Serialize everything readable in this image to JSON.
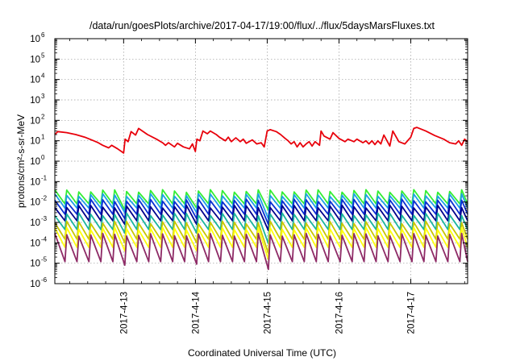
{
  "chart_data": {
    "type": "line",
    "title": "/data/run/goesPlots/archive/2017-04-17/19:00/flux/../flux/5daysMarsFluxes.txt",
    "xlabel": "Coordinated Universal Time (UTC)",
    "ylabel": "protons/cm²-s-sr-MeV",
    "yscale": "log",
    "ylim": [
      1e-06,
      1000000.0
    ],
    "y_ticks": [
      {
        "base": "10",
        "exp": "-6"
      },
      {
        "base": "10",
        "exp": "-5"
      },
      {
        "base": "10",
        "exp": "-4"
      },
      {
        "base": "10",
        "exp": "-3"
      },
      {
        "base": "10",
        "exp": "-2"
      },
      {
        "base": "10",
        "exp": "-1"
      },
      {
        "base": "10",
        "exp": "0"
      },
      {
        "base": "10",
        "exp": "1"
      },
      {
        "base": "10",
        "exp": "2"
      },
      {
        "base": "10",
        "exp": "3"
      },
      {
        "base": "10",
        "exp": "4"
      },
      {
        "base": "10",
        "exp": "5"
      },
      {
        "base": "10",
        "exp": "6"
      }
    ],
    "xlim": [
      "2017-04-12 01:00",
      "2017-04-17 19:00"
    ],
    "x_ticks": [
      "2017-4-13",
      "2017-4-14",
      "2017-4-15",
      "2017-4-16",
      "2017-4-17"
    ],
    "grid": true,
    "legend": "none",
    "series": [
      {
        "color": "#e8000b",
        "values": [
          [
            "2017-04-12 01:00",
            20
          ],
          [
            "2017-04-12 02:00",
            28
          ],
          [
            "2017-04-12 05:00",
            25
          ],
          [
            "2017-04-12 08:00",
            20
          ],
          [
            "2017-04-12 11:00",
            15
          ],
          [
            "2017-04-12 14:00",
            10
          ],
          [
            "2017-04-12 15:30",
            8
          ],
          [
            "2017-04-12 17:00",
            6
          ],
          [
            "2017-04-12 19:00",
            4.5
          ],
          [
            "2017-04-12 20:00",
            6
          ],
          [
            "2017-04-12 22:00",
            4
          ],
          [
            "2017-04-13 00:00",
            2.5
          ],
          [
            "2017-04-13 00:30",
            12
          ],
          [
            "2017-04-13 01:30",
            9
          ],
          [
            "2017-04-13 02:30",
            28
          ],
          [
            "2017-04-13 04:00",
            19
          ],
          [
            "2017-04-13 05:00",
            40
          ],
          [
            "2017-04-13 08:00",
            20
          ],
          [
            "2017-04-13 11:00",
            12
          ],
          [
            "2017-04-13 13:00",
            8
          ],
          [
            "2017-04-13 14:00",
            6
          ],
          [
            "2017-04-13 15:00",
            8
          ],
          [
            "2017-04-13 17:00",
            5
          ],
          [
            "2017-04-13 18:00",
            7.5
          ],
          [
            "2017-04-13 20:00",
            5
          ],
          [
            "2017-04-13 22:00",
            4
          ],
          [
            "2017-04-13 23:00",
            7
          ],
          [
            "2017-04-13 23:59",
            3
          ],
          [
            "2017-04-14 00:30",
            12
          ],
          [
            "2017-04-14 01:30",
            10
          ],
          [
            "2017-04-14 02:30",
            30
          ],
          [
            "2017-04-14 04:00",
            22
          ],
          [
            "2017-04-14 05:00",
            30
          ],
          [
            "2017-04-14 07:00",
            20
          ],
          [
            "2017-04-14 08:00",
            15
          ],
          [
            "2017-04-14 10:00",
            10
          ],
          [
            "2017-04-14 11:00",
            15
          ],
          [
            "2017-04-14 12:00",
            9
          ],
          [
            "2017-04-14 13:30",
            14
          ],
          [
            "2017-04-14 15:00",
            9
          ],
          [
            "2017-04-14 16:00",
            12
          ],
          [
            "2017-04-14 17:00",
            7.5
          ],
          [
            "2017-04-14 19:00",
            11
          ],
          [
            "2017-04-14 20:30",
            7
          ],
          [
            "2017-04-14 22:00",
            8
          ],
          [
            "2017-04-14 23:00",
            5
          ],
          [
            "2017-04-15 00:00",
            30
          ],
          [
            "2017-04-15 01:00",
            35
          ],
          [
            "2017-04-15 03:00",
            28
          ],
          [
            "2017-04-15 04:30",
            20
          ],
          [
            "2017-04-15 06:00",
            13
          ],
          [
            "2017-04-15 07:00",
            10
          ],
          [
            "2017-04-15 08:00",
            7
          ],
          [
            "2017-04-15 09:00",
            9
          ],
          [
            "2017-04-15 10:00",
            5
          ],
          [
            "2017-04-15 11:00",
            8
          ],
          [
            "2017-04-15 12:00",
            5
          ],
          [
            "2017-04-15 13:00",
            7
          ],
          [
            "2017-04-15 14:00",
            9
          ],
          [
            "2017-04-15 15:00",
            5.5
          ],
          [
            "2017-04-15 16:00",
            9
          ],
          [
            "2017-04-15 17:30",
            6
          ],
          [
            "2017-04-15 18:00",
            30
          ],
          [
            "2017-04-15 19:00",
            17
          ],
          [
            "2017-04-15 21:00",
            12
          ],
          [
            "2017-04-15 22:00",
            25
          ],
          [
            "2017-04-16 00:00",
            13
          ],
          [
            "2017-04-16 02:00",
            9
          ],
          [
            "2017-04-16 03:00",
            12
          ],
          [
            "2017-04-16 05:00",
            9
          ],
          [
            "2017-04-16 06:00",
            12
          ],
          [
            "2017-04-16 08:00",
            8
          ],
          [
            "2017-04-16 09:00",
            10
          ],
          [
            "2017-04-16 10:00",
            7
          ],
          [
            "2017-04-16 11:00",
            10
          ],
          [
            "2017-04-16 12:00",
            6.5
          ],
          [
            "2017-04-16 13:00",
            10
          ],
          [
            "2017-04-16 14:00",
            7
          ],
          [
            "2017-04-16 15:00",
            19
          ],
          [
            "2017-04-16 17:00",
            5.5
          ],
          [
            "2017-04-16 18:00",
            30
          ],
          [
            "2017-04-16 20:00",
            9
          ],
          [
            "2017-04-16 22:00",
            7
          ],
          [
            "2017-04-17 00:00",
            15
          ],
          [
            "2017-04-17 01:00",
            40
          ],
          [
            "2017-04-17 02:00",
            45
          ],
          [
            "2017-04-17 05:00",
            30
          ],
          [
            "2017-04-17 08:00",
            18
          ],
          [
            "2017-04-17 11:00",
            12
          ],
          [
            "2017-04-17 13:00",
            8
          ],
          [
            "2017-04-17 15:00",
            7
          ],
          [
            "2017-04-17 16:00",
            10
          ],
          [
            "2017-04-17 17:00",
            6
          ],
          [
            "2017-04-17 18:00",
            12
          ],
          [
            "2017-04-17 19:00",
            9
          ]
        ]
      },
      {
        "color": "#33ee33",
        "pattern": "sawtooth",
        "peak": 0.035,
        "trough": 0.008,
        "dips": [
          [
            "2017-04-13 00:00",
            0.004
          ],
          [
            "2017-04-14 00:00",
            0.005
          ],
          [
            "2017-04-15 00:00",
            0.004
          ]
        ]
      },
      {
        "color": "#1ea0e6",
        "pattern": "sawtooth",
        "peak": 0.022,
        "trough": 0.005,
        "dips": [
          [
            "2017-04-13 00:00",
            0.003
          ],
          [
            "2017-04-14 00:00",
            0.003
          ],
          [
            "2017-04-15 00:00",
            0.0015
          ]
        ]
      },
      {
        "color": "#0a2fd2",
        "pattern": "sawtooth",
        "peak": 0.012,
        "trough": 0.0025,
        "dips": [
          [
            "2017-04-13 00:00",
            0.0015
          ],
          [
            "2017-04-14 00:00",
            0.0015
          ],
          [
            "2017-04-15 00:00",
            0.0008
          ]
        ]
      },
      {
        "color": "#00008c",
        "pattern": "sawtooth",
        "peak": 0.006,
        "trough": 0.0012,
        "dips": [
          [
            "2017-04-13 00:00",
            0.0008
          ],
          [
            "2017-04-14 00:00",
            0.0008
          ],
          [
            "2017-04-15 00:00",
            0.0004
          ]
        ]
      },
      {
        "color": "#1ab59e",
        "pattern": "sawtooth",
        "peak": 0.0025,
        "trough": 0.00045,
        "dips": [
          [
            "2017-04-13 00:00",
            0.0003
          ],
          [
            "2017-04-14 00:00",
            0.0003
          ],
          [
            "2017-04-15 00:00",
            9e-05
          ]
        ]
      },
      {
        "color": "#c8c800",
        "pattern": "sawtooth",
        "peak": 0.001,
        "trough": 0.00015,
        "dips": [
          [
            "2017-04-13 00:00",
            0.0001
          ],
          [
            "2017-04-14 00:00",
            0.0001
          ],
          [
            "2017-04-15 00:00",
            3e-05
          ]
        ]
      },
      {
        "color": "#ffff10",
        "pattern": "sawtooth",
        "peak": 0.0005,
        "trough": 6e-05,
        "dips": [
          [
            "2017-04-13 00:00",
            4e-05
          ],
          [
            "2017-04-14 00:00",
            4e-05
          ],
          [
            "2017-04-15 00:00",
            1.5e-05
          ]
        ]
      },
      {
        "color": "#8e2a66",
        "pattern": "sawtooth",
        "peak": 0.00025,
        "trough": 1.2e-05,
        "dips": [
          [
            "2017-04-13 00:00",
            8e-06
          ],
          [
            "2017-04-14 00:00",
            9e-06
          ],
          [
            "2017-04-15 00:00",
            5e-06
          ]
        ]
      }
    ]
  }
}
